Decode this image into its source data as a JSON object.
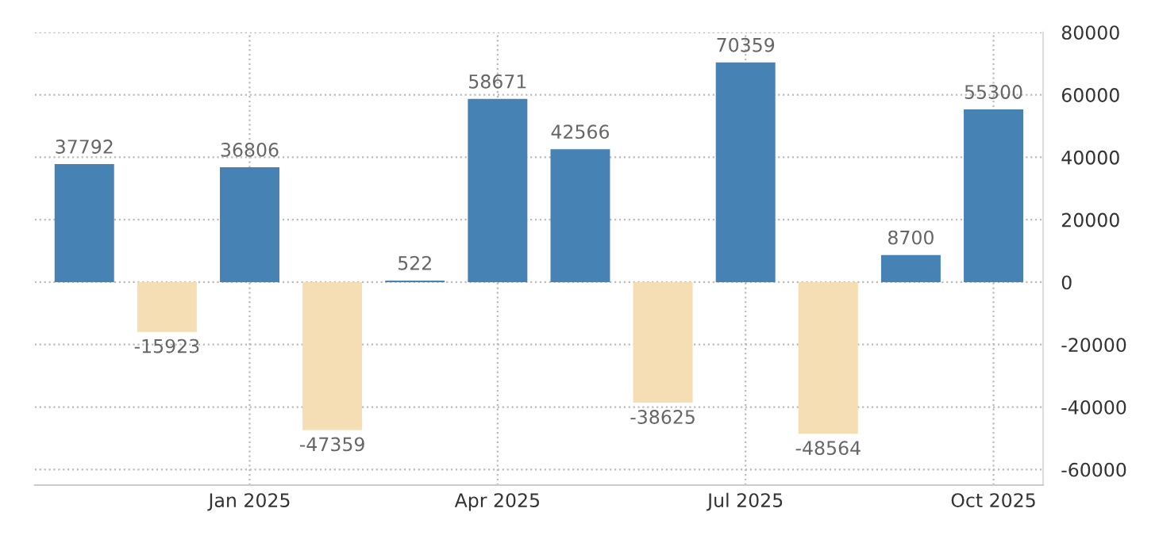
{
  "chart_data": {
    "type": "bar",
    "categories": [
      null,
      null,
      "Jan 2025",
      null,
      null,
      "Apr 2025",
      null,
      null,
      "Jul 2025",
      null,
      null,
      "Oct 2025"
    ],
    "values": [
      37792,
      -15923,
      36806,
      -47359,
      522,
      58671,
      42566,
      -38625,
      70359,
      -48564,
      8700,
      55300
    ],
    "colors": [
      "#4682b4",
      "#f5deb3",
      "#4682b4",
      "#f5deb3",
      "#4682b4",
      "#4682b4",
      "#4682b4",
      "#f5deb3",
      "#4682b4",
      "#f5deb3",
      "#4682b4",
      "#4682b4"
    ],
    "data_labels": true,
    "ylim": [
      -65000,
      80000
    ],
    "yticks": [
      -60000,
      -40000,
      -20000,
      0,
      20000,
      40000,
      60000,
      80000
    ],
    "grid": true,
    "legend": false
  }
}
